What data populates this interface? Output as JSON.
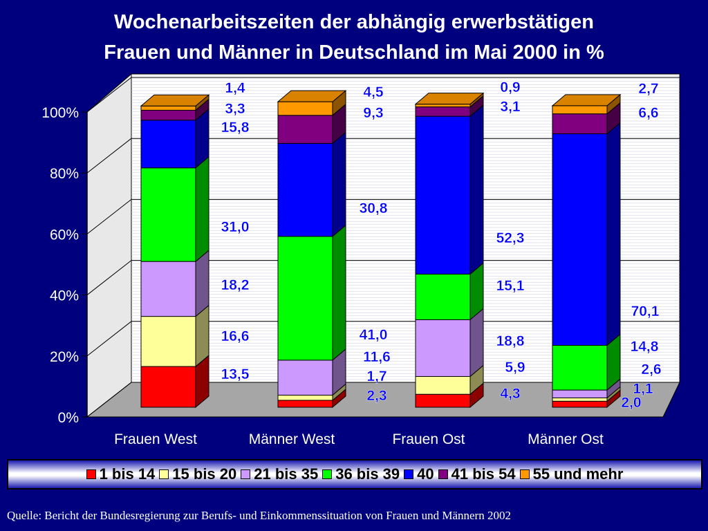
{
  "title": {
    "line1": "Wochenarbeitszeiten der abhängig erwerbstätigen",
    "line2": "Frauen und Männer in Deutschland im Mai 2000 in %"
  },
  "source": "Quelle: Bericht der Bundesregierung zur Berufs- und Einkommenssituation von Frauen und Männern 2002",
  "chart_data": {
    "type": "bar",
    "stacked": true,
    "three_d": true,
    "title": "Wochenarbeitszeiten der abhängig erwerbstätigen Frauen und Männer in Deutschland im Mai 2000 in %",
    "xlabel": "",
    "ylabel": "",
    "ylim": [
      0,
      100
    ],
    "yticks": [
      "0%",
      "20%",
      "40%",
      "60%",
      "80%",
      "100%"
    ],
    "grid": true,
    "legend_position": "bottom",
    "categories": [
      "Frauen West",
      "Männer West",
      "Frauen Ost",
      "Männer Ost"
    ],
    "series": [
      {
        "name": "1 bis 14",
        "color": "#ff0000",
        "values": [
          13.5,
          2.3,
          4.3,
          2.0
        ]
      },
      {
        "name": "15 bis 20",
        "color": "#ffff99",
        "values": [
          16.6,
          1.7,
          5.9,
          1.1
        ]
      },
      {
        "name": "21 bis 35",
        "color": "#cc99ff",
        "values": [
          18.2,
          11.6,
          18.8,
          2.6
        ]
      },
      {
        "name": "36 bis 39",
        "color": "#00ff00",
        "values": [
          31.0,
          41.0,
          15.1,
          14.8
        ]
      },
      {
        "name": "40",
        "color": "#0000ff",
        "values": [
          15.8,
          30.8,
          52.3,
          70.1
        ]
      },
      {
        "name": "41 bis 54",
        "color": "#800080",
        "values": [
          3.3,
          9.3,
          3.1,
          6.6
        ]
      },
      {
        "name": "55 und mehr",
        "color": "#ff9900",
        "values": [
          1.4,
          4.5,
          0.9,
          2.7
        ]
      }
    ],
    "data_labels": [
      [
        "13,5",
        "16,6",
        "18,2",
        "31,0",
        "15,8",
        "3,3",
        "1,4"
      ],
      [
        "2,3",
        "1,7",
        "11,6",
        "41,0",
        "30,8",
        "9,3",
        "4,5"
      ],
      [
        "4,3",
        "5,9",
        "18,8",
        "15,1",
        "52,3",
        "3,1",
        "0,9"
      ],
      [
        "2,0",
        "1,1",
        "2,6",
        "14,8",
        "70,1",
        "6,6",
        "2,7"
      ]
    ]
  }
}
